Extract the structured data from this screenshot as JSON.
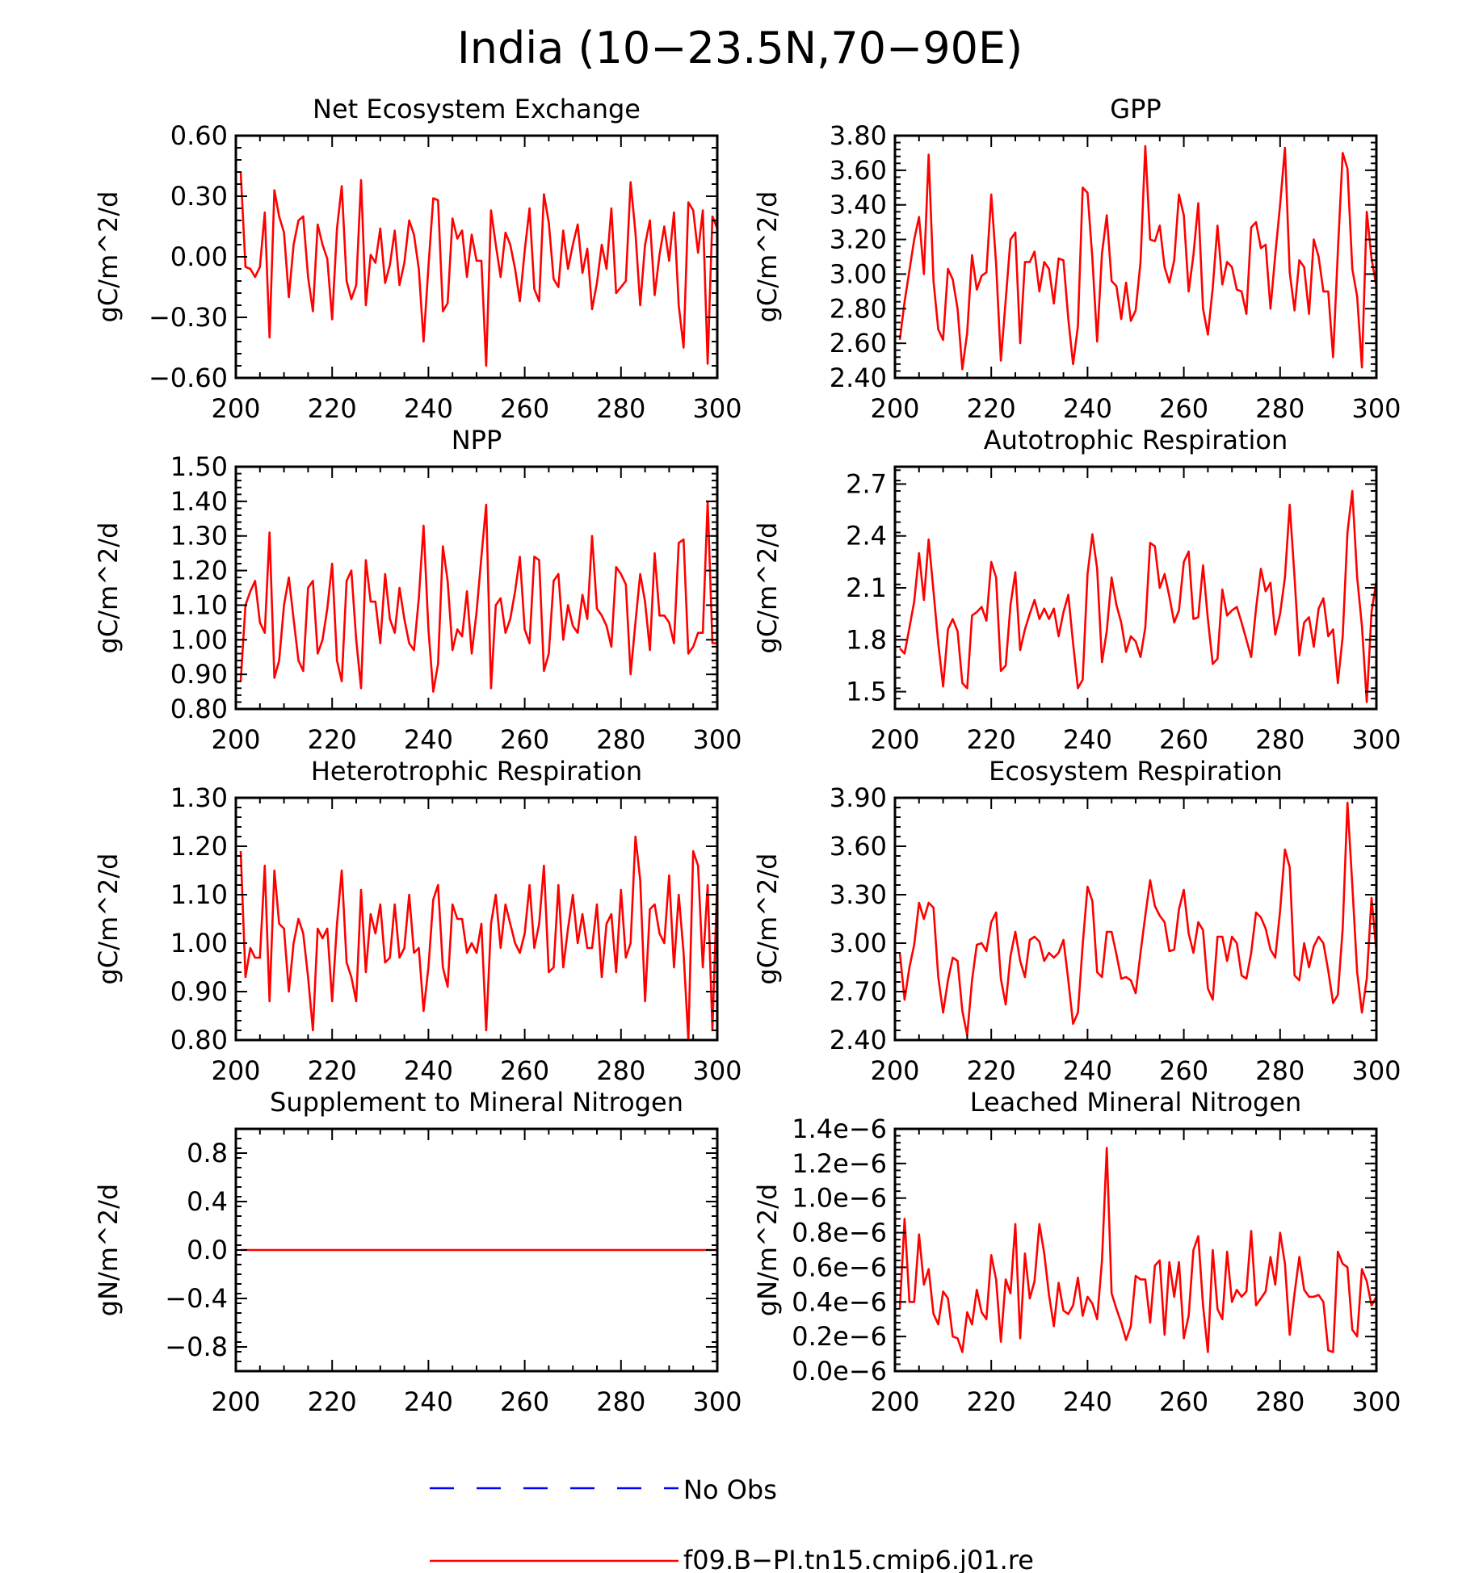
{
  "title": "India (10−23.5N,70−90E)",
  "colors": {
    "model": "#ff0000",
    "obs": "#0000ff",
    "axes": "#000000"
  },
  "legend": {
    "obs_label": "No Obs",
    "model_label": "f09.B−PI.tn15.cmip6.j01.re"
  },
  "chart_data": [
    {
      "type": "line",
      "title": "Net Ecosystem Exchange",
      "ylabel": "gC/m^2/d",
      "xlim": [
        200,
        300
      ],
      "ylim": [
        -0.6,
        0.6
      ],
      "xticks": [
        "200",
        "220",
        "240",
        "260",
        "280",
        "300"
      ],
      "yticks": [
        "−0.60",
        "−0.30",
        "0.00",
        "0.30",
        "0.60"
      ],
      "x_start": 201,
      "series": [
        {
          "values": [
            0.42,
            -0.05,
            -0.06,
            -0.1,
            -0.05,
            0.22,
            -0.4,
            0.33,
            0.2,
            0.12,
            -0.2,
            0.06,
            0.18,
            0.2,
            -0.1,
            -0.27,
            0.16,
            0.06,
            -0.01,
            -0.31,
            0.14,
            0.35,
            -0.12,
            -0.21,
            -0.14,
            0.38,
            -0.24,
            0.01,
            -0.03,
            0.14,
            -0.13,
            -0.04,
            0.13,
            -0.14,
            -0.03,
            0.18,
            0.11,
            -0.06,
            -0.42,
            -0.05,
            0.29,
            0.28,
            -0.27,
            -0.23,
            0.19,
            0.09,
            0.13,
            -0.1,
            0.11,
            -0.02,
            -0.02,
            -0.54,
            0.23,
            0.06,
            -0.1,
            0.12,
            0.06,
            -0.06,
            -0.22,
            0.03,
            0.24,
            -0.16,
            -0.22,
            0.31,
            0.17,
            -0.11,
            -0.15,
            0.13,
            -0.06,
            0.06,
            0.16,
            -0.08,
            0.04,
            -0.26,
            -0.13,
            0.06,
            -0.06,
            0.24,
            -0.18,
            -0.15,
            -0.12,
            0.37,
            0.12,
            -0.24,
            0.06,
            0.18,
            -0.19,
            0.01,
            0.15,
            -0.02,
            0.22,
            -0.24,
            -0.45,
            0.27,
            0.23,
            0.02,
            0.23,
            -0.53,
            0.2,
            0.14
          ]
        }
      ]
    },
    {
      "type": "line",
      "title": "GPP",
      "ylabel": "gC/m^2/d",
      "xlim": [
        200,
        300
      ],
      "ylim": [
        2.4,
        3.8
      ],
      "xticks": [
        "200",
        "220",
        "240",
        "260",
        "280",
        "300"
      ],
      "yticks": [
        "2.40",
        "2.60",
        "2.80",
        "3.00",
        "3.20",
        "3.40",
        "3.60",
        "3.80"
      ],
      "x_start": 201,
      "series": [
        {
          "values": [
            2.62,
            2.84,
            3.02,
            3.2,
            3.33,
            3.0,
            3.69,
            2.96,
            2.68,
            2.62,
            3.03,
            2.97,
            2.8,
            2.45,
            2.66,
            3.11,
            2.91,
            2.99,
            3.01,
            3.46,
            3.06,
            2.5,
            2.85,
            3.2,
            3.24,
            2.6,
            3.07,
            3.07,
            3.13,
            2.9,
            3.07,
            3.03,
            2.83,
            3.09,
            3.08,
            2.74,
            2.48,
            2.7,
            3.5,
            3.47,
            3.09,
            2.61,
            3.12,
            3.34,
            2.96,
            2.93,
            2.74,
            2.95,
            2.73,
            2.79,
            3.07,
            3.74,
            3.2,
            3.19,
            3.28,
            3.04,
            2.95,
            3.08,
            3.46,
            3.34,
            2.9,
            3.11,
            3.41,
            2.8,
            2.65,
            2.92,
            3.28,
            2.94,
            3.07,
            3.04,
            2.91,
            2.9,
            2.77,
            3.27,
            3.3,
            3.15,
            3.17,
            2.8,
            3.11,
            3.4,
            3.73,
            3.01,
            2.79,
            3.08,
            3.04,
            2.77,
            3.2,
            3.1,
            2.9,
            2.9,
            2.52,
            3.13,
            3.7,
            3.61,
            3.03,
            2.87,
            2.46,
            3.36,
            3.09,
            2.93
          ]
        }
      ]
    },
    {
      "type": "line",
      "title": "NPP",
      "ylabel": "gC/m^2/d",
      "xlim": [
        200,
        300
      ],
      "ylim": [
        0.8,
        1.5
      ],
      "xticks": [
        "200",
        "220",
        "240",
        "260",
        "280",
        "300"
      ],
      "yticks": [
        "0.80",
        "0.90",
        "1.00",
        "1.10",
        "1.20",
        "1.30",
        "1.40",
        "1.50"
      ],
      "x_start": 201,
      "series": [
        {
          "values": [
            0.88,
            1.1,
            1.14,
            1.17,
            1.05,
            1.02,
            1.31,
            0.89,
            0.94,
            1.1,
            1.18,
            1.06,
            0.94,
            0.91,
            1.15,
            1.17,
            0.96,
            1.0,
            1.09,
            1.22,
            0.94,
            0.88,
            1.17,
            1.2,
            1.0,
            0.86,
            1.23,
            1.11,
            1.11,
            0.99,
            1.19,
            1.06,
            1.02,
            1.15,
            1.06,
            0.99,
            0.97,
            1.12,
            1.33,
            1.03,
            0.85,
            0.93,
            1.27,
            1.17,
            0.97,
            1.03,
            1.01,
            1.14,
            0.96,
            1.08,
            1.24,
            1.39,
            0.86,
            1.1,
            1.12,
            1.02,
            1.06,
            1.14,
            1.24,
            1.03,
            0.99,
            1.24,
            1.23,
            0.91,
            0.96,
            1.17,
            1.19,
            1.0,
            1.1,
            1.04,
            1.02,
            1.13,
            1.06,
            1.3,
            1.09,
            1.07,
            1.04,
            0.98,
            1.21,
            1.19,
            1.16,
            0.9,
            1.05,
            1.19,
            1.11,
            0.97,
            1.25,
            1.07,
            1.07,
            1.05,
            0.99,
            1.28,
            1.29,
            0.96,
            0.98,
            1.02,
            1.02,
            1.4,
            0.99,
            0.99
          ]
        }
      ]
    },
    {
      "type": "line",
      "title": "Autotrophic Respiration",
      "ylabel": "gC/m^2/d",
      "xlim": [
        200,
        300
      ],
      "ylim": [
        1.4,
        2.8
      ],
      "xticks": [
        "200",
        "220",
        "240",
        "260",
        "280",
        "300"
      ],
      "yticks": [
        "1.5",
        "1.8",
        "2.1",
        "2.4",
        "2.7"
      ],
      "x_start": 201,
      "series": [
        {
          "values": [
            1.75,
            1.72,
            1.87,
            2.02,
            2.3,
            2.03,
            2.38,
            2.08,
            1.78,
            1.53,
            1.86,
            1.92,
            1.85,
            1.55,
            1.52,
            1.94,
            1.96,
            1.99,
            1.91,
            2.25,
            2.16,
            1.62,
            1.65,
            2.0,
            2.19,
            1.74,
            1.86,
            1.95,
            2.03,
            1.92,
            1.98,
            1.92,
            1.98,
            1.82,
            1.96,
            2.06,
            1.78,
            1.52,
            1.57,
            2.18,
            2.41,
            2.21,
            1.67,
            1.85,
            2.16,
            2.0,
            1.9,
            1.73,
            1.82,
            1.79,
            1.7,
            1.87,
            2.36,
            2.34,
            2.1,
            2.18,
            2.05,
            1.9,
            1.97,
            2.25,
            2.31,
            1.92,
            1.93,
            2.23,
            1.92,
            1.66,
            1.69,
            2.09,
            1.94,
            1.97,
            1.99,
            1.9,
            1.8,
            1.7,
            1.98,
            2.21,
            2.08,
            2.13,
            1.83,
            1.95,
            2.16,
            2.58,
            2.16,
            1.71,
            1.9,
            1.93,
            1.76,
            1.98,
            2.04,
            1.82,
            1.86,
            1.55,
            1.82,
            2.42,
            2.66,
            2.16,
            1.88,
            1.44,
            1.96,
            2.14
          ]
        }
      ]
    },
    {
      "type": "line",
      "title": "Heterotrophic Respiration",
      "ylabel": "gC/m^2/d",
      "xlim": [
        200,
        300
      ],
      "ylim": [
        0.8,
        1.3
      ],
      "xticks": [
        "200",
        "220",
        "240",
        "260",
        "280",
        "300"
      ],
      "yticks": [
        "0.80",
        "0.90",
        "1.00",
        "1.10",
        "1.20",
        "1.30"
      ],
      "x_start": 201,
      "series": [
        {
          "values": [
            1.19,
            0.93,
            0.99,
            0.97,
            0.97,
            1.16,
            0.88,
            1.15,
            1.04,
            1.03,
            0.9,
            1.0,
            1.05,
            1.02,
            0.93,
            0.82,
            1.03,
            1.01,
            1.03,
            0.88,
            1.04,
            1.15,
            0.96,
            0.93,
            0.88,
            1.11,
            0.94,
            1.06,
            1.02,
            1.08,
            0.96,
            0.97,
            1.08,
            0.97,
            0.99,
            1.1,
            0.98,
            0.99,
            0.86,
            0.95,
            1.09,
            1.12,
            0.95,
            0.91,
            1.08,
            1.05,
            1.05,
            0.98,
            1.0,
            0.98,
            1.04,
            0.82,
            1.04,
            1.1,
            0.99,
            1.08,
            1.04,
            1.0,
            0.98,
            1.02,
            1.12,
            0.99,
            1.04,
            1.16,
            0.94,
            0.95,
            1.12,
            0.95,
            1.03,
            1.1,
            1.0,
            1.06,
            0.99,
            0.99,
            1.08,
            0.93,
            1.04,
            1.06,
            0.94,
            1.11,
            0.97,
            1.0,
            1.22,
            1.13,
            0.88,
            1.07,
            1.08,
            1.02,
            1.0,
            1.14,
            0.95,
            1.1,
            0.98,
            0.8,
            1.19,
            1.16,
            0.95,
            1.12,
            0.82,
            1.13
          ]
        }
      ]
    },
    {
      "type": "line",
      "title": "Ecosystem Respiration",
      "ylabel": "gC/m^2/d",
      "xlim": [
        200,
        300
      ],
      "ylim": [
        2.4,
        3.9
      ],
      "xticks": [
        "200",
        "220",
        "240",
        "260",
        "280",
        "300"
      ],
      "yticks": [
        "2.40",
        "2.70",
        "3.00",
        "3.30",
        "3.60",
        "3.90"
      ],
      "x_start": 201,
      "series": [
        {
          "values": [
            2.94,
            2.65,
            2.85,
            2.99,
            3.25,
            3.15,
            3.25,
            3.22,
            2.79,
            2.57,
            2.77,
            2.91,
            2.89,
            2.58,
            2.43,
            2.77,
            2.99,
            3.0,
            2.95,
            3.13,
            3.19,
            2.78,
            2.62,
            2.92,
            3.07,
            2.89,
            2.79,
            3.02,
            3.04,
            3.01,
            2.89,
            2.94,
            2.91,
            2.94,
            3.02,
            2.77,
            2.5,
            2.57,
            2.99,
            3.35,
            3.26,
            2.82,
            2.79,
            3.07,
            3.07,
            2.93,
            2.78,
            2.79,
            2.77,
            2.69,
            2.94,
            3.17,
            3.39,
            3.23,
            3.17,
            3.13,
            2.95,
            2.96,
            3.21,
            3.33,
            3.06,
            2.94,
            3.13,
            3.08,
            2.72,
            2.65,
            3.04,
            3.04,
            2.89,
            3.04,
            3.0,
            2.8,
            2.78,
            2.94,
            3.19,
            3.16,
            3.09,
            2.96,
            2.91,
            3.2,
            3.58,
            3.47,
            2.8,
            2.77,
            3.0,
            2.85,
            2.98,
            3.04,
            3.0,
            2.83,
            2.63,
            2.68,
            3.09,
            3.87,
            3.36,
            2.82,
            2.57,
            2.78,
            3.28,
            2.95
          ]
        }
      ]
    },
    {
      "type": "line",
      "title": "Supplement to Mineral Nitrogen",
      "ylabel": "gN/m^2/d",
      "xlim": [
        200,
        300
      ],
      "ylim": [
        -1.0,
        1.0
      ],
      "xticks": [
        "200",
        "220",
        "240",
        "260",
        "280",
        "300"
      ],
      "yticks": [
        "−0.8",
        "−0.4",
        "0.0",
        "0.4",
        "0.8"
      ],
      "x_start": 201,
      "series": [
        {
          "values": [
            0,
            0,
            0,
            0,
            0,
            0,
            0,
            0,
            0,
            0,
            0,
            0,
            0,
            0,
            0,
            0,
            0,
            0,
            0,
            0,
            0,
            0,
            0,
            0,
            0,
            0,
            0,
            0,
            0,
            0,
            0,
            0,
            0,
            0,
            0,
            0,
            0,
            0,
            0,
            0,
            0,
            0,
            0,
            0,
            0,
            0,
            0,
            0,
            0,
            0,
            0,
            0,
            0,
            0,
            0,
            0,
            0,
            0,
            0,
            0,
            0,
            0,
            0,
            0,
            0,
            0,
            0,
            0,
            0,
            0,
            0,
            0,
            0,
            0,
            0,
            0,
            0,
            0,
            0,
            0,
            0,
            0,
            0,
            0,
            0,
            0,
            0,
            0,
            0,
            0,
            0,
            0,
            0,
            0,
            0,
            0,
            0,
            0,
            0,
            0
          ]
        }
      ]
    },
    {
      "type": "line",
      "title": "Leached Mineral Nitrogen",
      "ylabel": "gN/m^2/d",
      "xlim": [
        200,
        300
      ],
      "ylim": [
        0,
        1.4e-06
      ],
      "xticks": [
        "200",
        "220",
        "240",
        "260",
        "280",
        "300"
      ],
      "yticks": [
        "0.0e−6",
        "0.2e−6",
        "0.4e−6",
        "0.6e−6",
        "0.8e−6",
        "1.0e−6",
        "1.2e−6",
        "1.4e−6"
      ],
      "x_start": 201,
      "series": [
        {
          "values": [
            3.6e-07,
            8.8e-07,
            4e-07,
            4e-07,
            7.9e-07,
            5e-07,
            5.9e-07,
            3.3e-07,
            2.7e-07,
            4.6e-07,
            4.2e-07,
            2e-07,
            1.9e-07,
            1.1e-07,
            3.4e-07,
            2.7e-07,
            4.7e-07,
            3.4e-07,
            3e-07,
            6.7e-07,
            5.3e-07,
            1.7e-07,
            5.3e-07,
            4.5e-07,
            8.5e-07,
            1.9e-07,
            6.8e-07,
            4.2e-07,
            5.2e-07,
            8.5e-07,
            6.8e-07,
            4.4e-07,
            2.6e-07,
            5.1e-07,
            3.5e-07,
            3.3e-07,
            3.8e-07,
            5.4e-07,
            3.2e-07,
            4.3e-07,
            3.9e-07,
            3e-07,
            6.4e-07,
            1.29e-06,
            4.5e-07,
            3.6e-07,
            2.8e-07,
            1.8e-07,
            2.6e-07,
            5.5e-07,
            5.3e-07,
            5.3e-07,
            2.8e-07,
            6.1e-07,
            6.4e-07,
            2.1e-07,
            6.3e-07,
            4.3e-07,
            6.3e-07,
            1.9e-07,
            3.2e-07,
            7e-07,
            7.8e-07,
            3.8e-07,
            1.1e-07,
            7e-07,
            3.6e-07,
            3e-07,
            6.9e-07,
            4e-07,
            4.7e-07,
            4.3e-07,
            4.6e-07,
            8.1e-07,
            3.8e-07,
            4.2e-07,
            4.6e-07,
            6.6e-07,
            5e-07,
            8e-07,
            6.2e-07,
            2.1e-07,
            4.5e-07,
            6.6e-07,
            4.7e-07,
            4.3e-07,
            4.3e-07,
            4.4e-07,
            4e-07,
            1.2e-07,
            1.1e-07,
            6.9e-07,
            6.2e-07,
            6e-07,
            2.4e-07,
            2e-07,
            5.9e-07,
            5.2e-07,
            3.8e-07,
            4.3e-07
          ]
        }
      ]
    }
  ]
}
